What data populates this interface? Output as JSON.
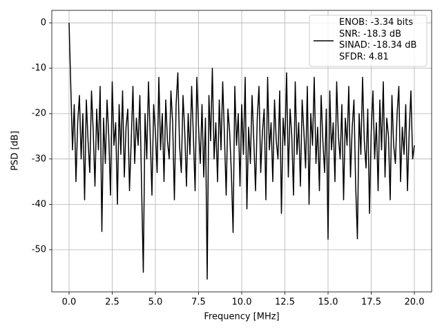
{
  "chart_data": {
    "type": "line",
    "xlabel": "Frequency [MHz]",
    "ylabel": "PSD [dB]",
    "x": [
      0,
      0.1,
      0.2,
      0.3,
      0.4,
      0.5,
      0.6,
      0.7,
      0.8,
      0.9,
      1,
      1.1,
      1.2,
      1.3,
      1.4,
      1.5,
      1.6,
      1.7,
      1.8,
      1.9,
      2,
      2.1,
      2.2,
      2.3,
      2.4,
      2.5,
      2.6,
      2.7,
      2.8,
      2.9,
      3,
      3.1,
      3.2,
      3.3,
      3.4,
      3.5,
      3.6,
      3.7,
      3.8,
      3.9,
      4,
      4.1,
      4.2,
      4.3,
      4.4,
      4.5,
      4.6,
      4.7,
      4.8,
      4.9,
      5,
      5.1,
      5.2,
      5.3,
      5.4,
      5.5,
      5.6,
      5.7,
      5.8,
      5.9,
      6,
      6.1,
      6.2,
      6.3,
      6.4,
      6.5,
      6.6,
      6.7,
      6.8,
      6.9,
      7,
      7.1,
      7.2,
      7.3,
      7.4,
      7.5,
      7.6,
      7.7,
      7.8,
      7.9,
      8,
      8.1,
      8.2,
      8.3,
      8.4,
      8.5,
      8.6,
      8.7,
      8.8,
      8.9,
      9,
      9.1,
      9.2,
      9.3,
      9.4,
      9.5,
      9.6,
      9.7,
      9.8,
      9.9,
      10,
      10.1,
      10.2,
      10.3,
      10.4,
      10.5,
      10.6,
      10.7,
      10.8,
      10.9,
      11,
      11.1,
      11.2,
      11.3,
      11.4,
      11.5,
      11.6,
      11.7,
      11.8,
      11.9,
      12,
      12.1,
      12.2,
      12.3,
      12.4,
      12.5,
      12.6,
      12.7,
      12.8,
      12.9,
      13,
      13.1,
      13.2,
      13.3,
      13.4,
      13.5,
      13.6,
      13.7,
      13.8,
      13.9,
      14,
      14.1,
      14.2,
      14.3,
      14.4,
      14.5,
      14.6,
      14.7,
      14.8,
      14.9,
      15,
      15.1,
      15.2,
      15.3,
      15.4,
      15.5,
      15.6,
      15.7,
      15.8,
      15.9,
      16,
      16.1,
      16.2,
      16.3,
      16.4,
      16.5,
      16.6,
      16.7,
      16.8,
      16.9,
      17,
      17.1,
      17.2,
      17.3,
      17.4,
      17.5,
      17.6,
      17.7,
      17.8,
      17.9,
      18,
      18.1,
      18.2,
      18.3,
      18.4,
      18.5,
      18.6,
      18.7,
      18.8,
      18.9,
      19,
      19.1,
      19.2,
      19.3,
      19.4,
      19.5,
      19.6,
      19.7,
      19.8,
      19.9,
      20
    ],
    "series": [
      {
        "name": "ENOB: -3.34 bits\nSNR: -18.3 dB\nSINAD: -18.34 dB\nSFDR: 4.81",
        "color": "#000000",
        "values": [
          0,
          -14,
          -28,
          -18,
          -35,
          -22,
          -16,
          -30,
          -20,
          -39,
          -17,
          -26,
          -33,
          -15,
          -24,
          -36,
          -19,
          -28,
          -14,
          -46,
          -21,
          -31,
          -17,
          -25,
          -38,
          -13,
          -27,
          -22,
          -40,
          -18,
          -29,
          -15,
          -34,
          -23,
          -19,
          -37,
          -26,
          -14,
          -31,
          -21,
          -27,
          -16,
          -36,
          -55,
          -20,
          -30,
          -13,
          -25,
          -38,
          -18,
          -24,
          -33,
          -12,
          -28,
          -20,
          -35,
          -17,
          -26,
          -30,
          -15,
          -22,
          -39,
          -18,
          -11,
          -27,
          -33,
          -16,
          -24,
          -36,
          -20,
          -29,
          -14,
          -25,
          -37,
          -12,
          -23,
          -31,
          -18,
          -34,
          -21,
          -56.5,
          -16,
          -26,
          -10,
          -30,
          -22,
          -35,
          -17,
          -28,
          -13,
          -25,
          -38,
          -19,
          -24,
          -33,
          -46.2,
          -14,
          -27,
          -20,
          -36,
          -18,
          -29,
          -12,
          -41,
          -23,
          -31,
          -16,
          -26,
          -37,
          -21,
          -14,
          -33,
          -24,
          -19,
          -39,
          -12,
          -28,
          -22,
          -35,
          -17,
          -26,
          -30,
          -15,
          -42,
          -21,
          -27,
          -11,
          -34,
          -19,
          -25,
          -38,
          -13,
          -29,
          -22,
          -36,
          -17,
          -24,
          -32,
          -14,
          -40,
          -20,
          -27,
          -12,
          -31,
          -23,
          -37,
          -16,
          -26,
          -33,
          -19,
          -47.7,
          -15,
          -28,
          -22,
          -35,
          -13,
          -25,
          -30,
          -18,
          -39,
          -21,
          -27,
          -14,
          -34,
          -23,
          -17,
          -36,
          -47.6,
          -20,
          -29,
          -12,
          -26,
          -32,
          -19,
          -42,
          -24,
          -15,
          -30,
          -22,
          -37,
          -17,
          -28,
          -13,
          -34,
          -21,
          -25,
          -39,
          -16,
          -27,
          -31,
          -20,
          -14,
          -35,
          -23,
          -29,
          -18,
          -37,
          -24,
          -15,
          -30,
          -27
        ]
      }
    ],
    "xlim": [
      -1,
      21
    ],
    "ylim": [
      -59.3,
      2.75
    ],
    "xticks": [
      {
        "value": 0,
        "label": "0.0"
      },
      2.5,
      {
        "value": 5,
        "label": "5.0"
      },
      7.5,
      {
        "value": 10,
        "label": "10.0"
      },
      12.5,
      {
        "value": 15,
        "label": "15.0"
      },
      17.5,
      {
        "value": 20,
        "label": "20.0"
      }
    ],
    "yticks": [
      0,
      -10,
      -20,
      -30,
      -40,
      -50
    ],
    "grid": true,
    "legend": "upper right"
  }
}
